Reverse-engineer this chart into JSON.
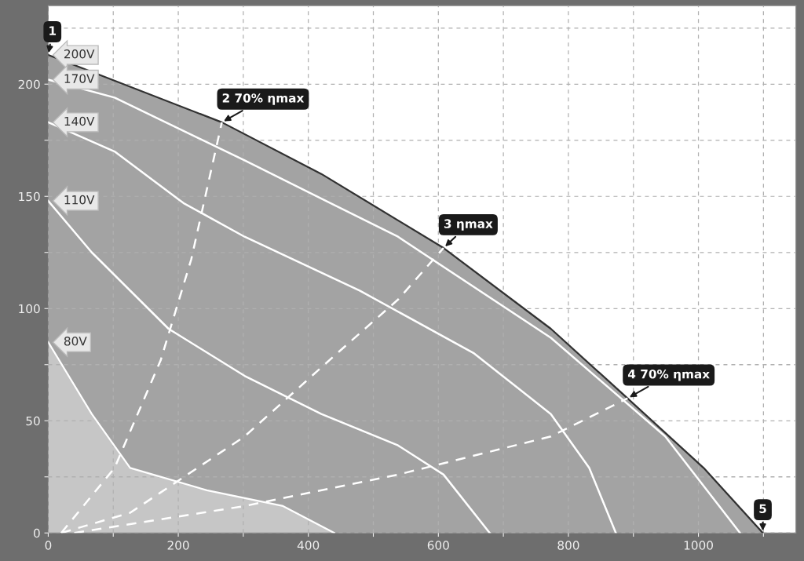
{
  "chart_data": {
    "type": "line",
    "xlim": [
      0,
      1150
    ],
    "ylim": [
      0,
      235
    ],
    "xticks": [
      0,
      {
        "value": 100,
        "label": null
      },
      200,
      {
        "value": 300,
        "label": null
      },
      400,
      {
        "value": 500,
        "label": null
      },
      600,
      {
        "value": 700,
        "label": null
      },
      800,
      {
        "value": 900,
        "label": null
      },
      1000,
      {
        "value": 1100,
        "label": null
      }
    ],
    "yticks": [
      0,
      {
        "value": 25,
        "label": null
      },
      50,
      {
        "value": 75,
        "label": null
      },
      100,
      {
        "value": 125,
        "label": null
      },
      150,
      {
        "value": 175,
        "label": null
      },
      200,
      {
        "value": 225,
        "label": null
      }
    ],
    "grid": true,
    "legend": false,
    "marker": "none",
    "series": [
      {
        "name": "200V",
        "type": "area",
        "color": "#a3a3a3",
        "x": [
          0,
          267,
          420,
          608,
          773,
          891,
          1008,
          1099
        ],
        "values": [
          213,
          183,
          160,
          127,
          91,
          60,
          29,
          0
        ]
      },
      {
        "name": "80V",
        "type": "area",
        "color": "#c6c6c6",
        "x": [
          0,
          67,
          126,
          244,
          361,
          440
        ],
        "values": [
          85,
          53,
          29,
          19,
          12,
          0
        ]
      },
      {
        "name": "170V",
        "color": "#ffffff",
        "x": [
          0,
          102,
          302,
          538,
          773,
          949,
          1064
        ],
        "values": [
          202,
          194,
          166,
          132,
          87,
          43,
          0
        ]
      },
      {
        "name": "140V",
        "color": "#ffffff",
        "x": [
          0,
          102,
          208,
          302,
          479,
          655,
          773,
          832,
          873
        ],
        "values": [
          183,
          170,
          147,
          132,
          108,
          80,
          53,
          29,
          0
        ]
      },
      {
        "name": "110V",
        "color": "#ffffff",
        "x": [
          0,
          67,
          185,
          302,
          420,
          538,
          608,
          679
        ],
        "values": [
          148,
          125,
          91,
          70,
          53,
          39,
          26,
          0
        ]
      },
      {
        "color": "#ffffff",
        "line_style": "dashed",
        "x": [
          20,
          102,
          173,
          220,
          267
        ],
        "values": [
          0,
          29,
          77,
          122,
          183
        ]
      },
      {
        "color": "#ffffff",
        "line_style": "dashed",
        "x": [
          20,
          126,
          302,
          444,
          538,
          608
        ],
        "values": [
          0,
          9,
          43,
          80,
          104,
          127
        ]
      },
      {
        "color": "#ffffff",
        "line_style": "dashed",
        "x": [
          40,
          302,
          538,
          773,
          891
        ],
        "values": [
          0,
          12,
          26,
          43,
          60
        ]
      }
    ],
    "annotations": [
      {
        "text": "1",
        "x": 0,
        "y": 213
      },
      {
        "text": "2 70% ηmax",
        "x": 267,
        "y": 183
      },
      {
        "text": "3 ηmax",
        "x": 608,
        "y": 127
      },
      {
        "text": "4 70% ηmax",
        "x": 891,
        "y": 60
      },
      {
        "text": "5",
        "x": 1099,
        "y": 0
      }
    ]
  }
}
